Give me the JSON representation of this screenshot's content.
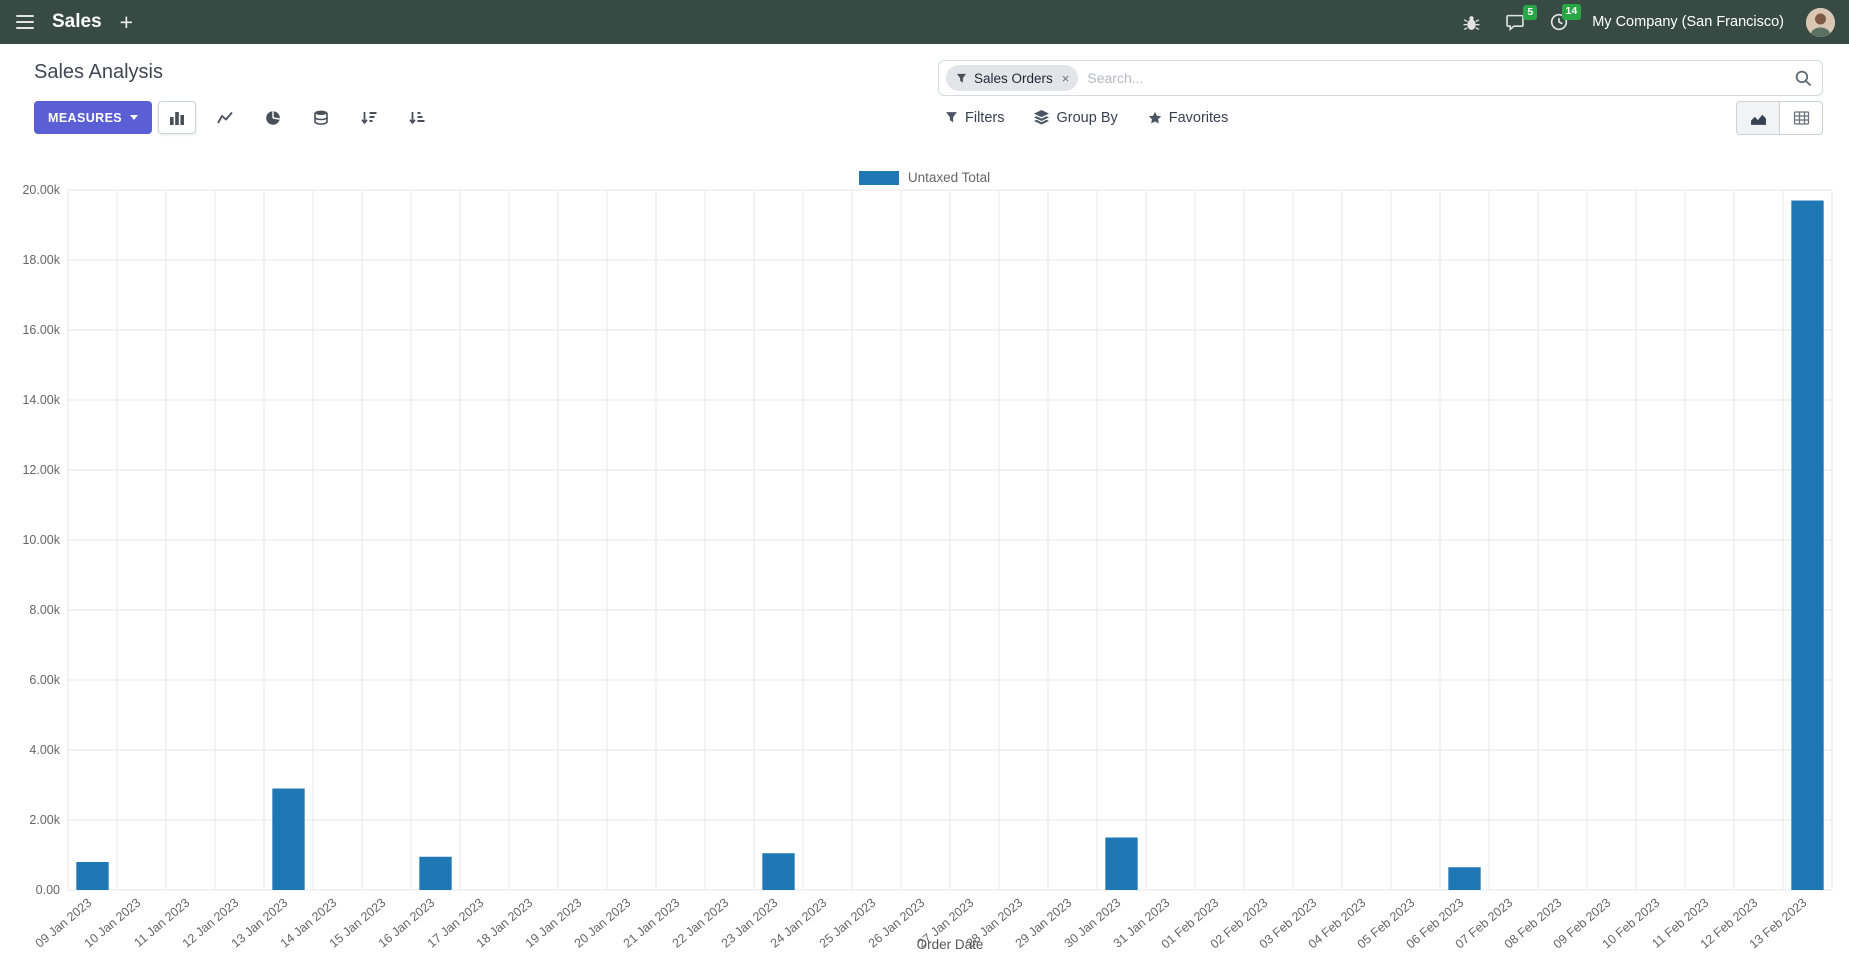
{
  "colors": {
    "topbar": "#374b44",
    "accent": "#5b5fd6",
    "badge": "#28a745",
    "bar": "#1f77b4"
  },
  "topbar": {
    "app_name": "Sales",
    "plus_label": "+",
    "message_badge": "5",
    "activity_badge": "14",
    "company": "My Company (San Francisco)"
  },
  "control_panel": {
    "title": "Sales Analysis",
    "measures_label": "MEASURES",
    "search": {
      "facet_label": "Sales Orders",
      "facet_remove": "×",
      "placeholder": "Search..."
    },
    "filters_label": "Filters",
    "group_by_label": "Group By",
    "favorites_label": "Favorites"
  },
  "icons": {
    "apps_menu": "hamburger",
    "plus": "plus",
    "debug": "bug",
    "messages": "chat-bubble",
    "activities": "clock",
    "search": "magnifier",
    "facet_filter": "funnel",
    "filters": "funnel",
    "group_by": "layers",
    "favorites": "star",
    "chart_bar": "bar-chart",
    "chart_line": "line-chart",
    "chart_pie": "pie-chart",
    "stacked_toggle": "database-stack",
    "sort_desc": "sort-amount-desc",
    "sort_asc": "sort-amount-asc",
    "graph_view": "area-chart",
    "pivot_view": "table-grid"
  },
  "chart_data": {
    "type": "bar",
    "title": "",
    "xlabel": "Order Date",
    "ylabel": "",
    "ylim": [
      0,
      20000
    ],
    "grid": true,
    "legend_position": "top",
    "ytick_labels": [
      "0.00",
      "2.00k",
      "4.00k",
      "6.00k",
      "8.00k",
      "10.00k",
      "12.00k",
      "14.00k",
      "16.00k",
      "18.00k",
      "20.00k"
    ],
    "categories": [
      "09 Jan 2023",
      "10 Jan 2023",
      "11 Jan 2023",
      "12 Jan 2023",
      "13 Jan 2023",
      "14 Jan 2023",
      "15 Jan 2023",
      "16 Jan 2023",
      "17 Jan 2023",
      "18 Jan 2023",
      "19 Jan 2023",
      "20 Jan 2023",
      "21 Jan 2023",
      "22 Jan 2023",
      "23 Jan 2023",
      "24 Jan 2023",
      "25 Jan 2023",
      "26 Jan 2023",
      "27 Jan 2023",
      "28 Jan 2023",
      "29 Jan 2023",
      "30 Jan 2023",
      "31 Jan 2023",
      "01 Feb 2023",
      "02 Feb 2023",
      "03 Feb 2023",
      "04 Feb 2023",
      "05 Feb 2023",
      "06 Feb 2023",
      "07 Feb 2023",
      "08 Feb 2023",
      "09 Feb 2023",
      "10 Feb 2023",
      "11 Feb 2023",
      "12 Feb 2023",
      "13 Feb 2023"
    ],
    "series": [
      {
        "name": "Untaxed Total",
        "color": "#1f77b4",
        "values": [
          800,
          0,
          0,
          0,
          2900,
          0,
          0,
          950,
          0,
          0,
          0,
          0,
          0,
          0,
          1050,
          0,
          0,
          0,
          0,
          0,
          0,
          1500,
          0,
          0,
          0,
          0,
          0,
          0,
          650,
          0,
          0,
          0,
          0,
          0,
          0,
          19700
        ]
      }
    ]
  }
}
